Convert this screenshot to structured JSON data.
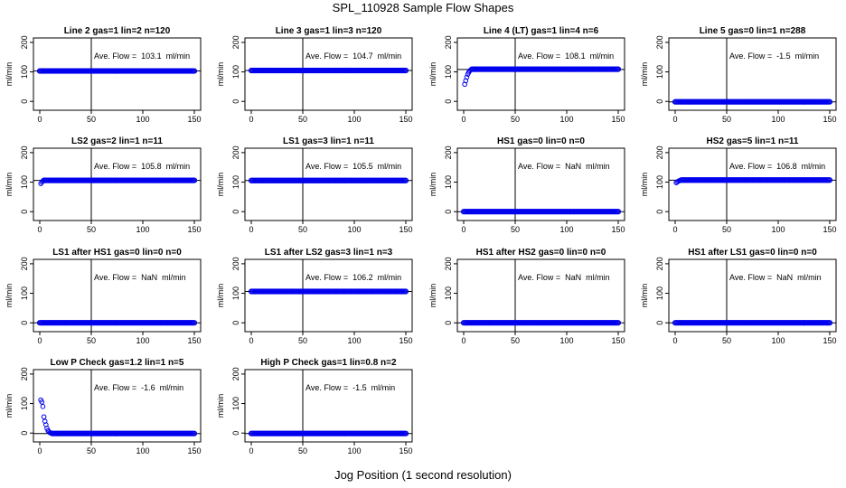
{
  "figure": {
    "title": "SPL_110928  Sample Flow Shapes",
    "xlabel": "Jog Position (1 second resolution)"
  },
  "colors": {
    "points": "#0000ee",
    "axis": "#000000",
    "background": "#ffffff"
  },
  "chart_data": [
    {
      "type": "scatter",
      "title": "Line 2 gas=1 lin=2 n=120",
      "ylabel": "ml/min",
      "xlim": [
        0,
        150
      ],
      "ylim": [
        -30,
        215
      ],
      "xticks": [
        0,
        50,
        100,
        150
      ],
      "yticks": [
        0,
        100,
        200
      ],
      "vline_x": 50,
      "hline_y": 103.1,
      "annotation": "Ave. Flow =  103.1  ml/min",
      "avg_flow": 103.1,
      "series": [
        {
          "name": "flow",
          "x": [
            0,
            150
          ],
          "y": [
            103,
            103
          ],
          "transient_x": [],
          "transient_y": []
        }
      ]
    },
    {
      "type": "scatter",
      "title": "Line 3 gas=1 lin=3 n=120",
      "ylabel": "ml/min",
      "xlim": [
        0,
        150
      ],
      "ylim": [
        -30,
        215
      ],
      "xticks": [
        0,
        50,
        100,
        150
      ],
      "yticks": [
        0,
        100,
        200
      ],
      "vline_x": 50,
      "hline_y": 104.7,
      "annotation": "Ave. Flow =  104.7  ml/min",
      "avg_flow": 104.7,
      "series": [
        {
          "name": "flow",
          "x": [
            0,
            150
          ],
          "y": [
            104.7,
            104.7
          ],
          "transient_x": [],
          "transient_y": []
        }
      ]
    },
    {
      "type": "scatter",
      "title": "Line 4 (LT) gas=1 lin=4 n=6",
      "ylabel": "ml/min",
      "xlim": [
        0,
        150
      ],
      "ylim": [
        -30,
        215
      ],
      "xticks": [
        0,
        50,
        100,
        150
      ],
      "yticks": [
        0,
        100,
        200
      ],
      "vline_x": 50,
      "hline_y": 108.1,
      "annotation": "Ave. Flow =  108.1  ml/min",
      "avg_flow": 108.1,
      "series": [
        {
          "name": "flow",
          "x": [
            8,
            150
          ],
          "y": [
            109,
            109
          ],
          "transient_x": [
            1,
            2,
            3,
            4,
            5,
            6,
            7
          ],
          "transient_y": [
            58,
            70,
            82,
            92,
            99,
            104,
            107
          ]
        }
      ]
    },
    {
      "type": "scatter",
      "title": "Line 5 gas=0 lin=1 n=288",
      "ylabel": "ml/min",
      "xlim": [
        0,
        150
      ],
      "ylim": [
        -30,
        215
      ],
      "xticks": [
        0,
        50,
        100,
        150
      ],
      "yticks": [
        0,
        100,
        200
      ],
      "vline_x": 50,
      "hline_y": -1.5,
      "annotation": "Ave. Flow =  -1.5  ml/min",
      "avg_flow": -1.5,
      "series": [
        {
          "name": "flow",
          "x": [
            0,
            150
          ],
          "y": [
            -1.5,
            -1.5
          ],
          "transient_x": [],
          "transient_y": []
        }
      ]
    },
    {
      "type": "scatter",
      "title": "LS2 gas=2 lin=1 n=11",
      "ylabel": "ml/min",
      "xlim": [
        0,
        150
      ],
      "ylim": [
        -30,
        215
      ],
      "xticks": [
        0,
        50,
        100,
        150
      ],
      "yticks": [
        0,
        100,
        200
      ],
      "vline_x": 50,
      "hline_y": 105.8,
      "annotation": "Ave. Flow =  105.8  ml/min",
      "avg_flow": 105.8,
      "series": [
        {
          "name": "flow",
          "x": [
            4,
            150
          ],
          "y": [
            106,
            106
          ],
          "transient_x": [
            1,
            2,
            3
          ],
          "transient_y": [
            95,
            100,
            104
          ]
        }
      ]
    },
    {
      "type": "scatter",
      "title": "LS1 gas=3 lin=1 n=11",
      "ylabel": "ml/min",
      "xlim": [
        0,
        150
      ],
      "ylim": [
        -30,
        215
      ],
      "xticks": [
        0,
        50,
        100,
        150
      ],
      "yticks": [
        0,
        100,
        200
      ],
      "vline_x": 50,
      "hline_y": 105.5,
      "annotation": "Ave. Flow =  105.5  ml/min",
      "avg_flow": 105.5,
      "series": [
        {
          "name": "flow",
          "x": [
            0,
            150
          ],
          "y": [
            105.5,
            105.5
          ],
          "transient_x": [],
          "transient_y": []
        }
      ]
    },
    {
      "type": "scatter",
      "title": "HS1 gas=0 lin=0 n=0",
      "ylabel": "ml/min",
      "xlim": [
        0,
        150
      ],
      "ylim": [
        -30,
        215
      ],
      "xticks": [
        0,
        50,
        100,
        150
      ],
      "yticks": [
        0,
        100,
        200
      ],
      "vline_x": 50,
      "hline_y": 0,
      "annotation": "Ave. Flow =  NaN  ml/min",
      "avg_flow": null,
      "series": [
        {
          "name": "flow",
          "x": [
            0,
            150
          ],
          "y": [
            0,
            0
          ],
          "transient_x": [],
          "transient_y": []
        }
      ]
    },
    {
      "type": "scatter",
      "title": "HS2 gas=5 lin=1 n=11",
      "ylabel": "ml/min",
      "xlim": [
        0,
        150
      ],
      "ylim": [
        -30,
        215
      ],
      "xticks": [
        0,
        50,
        100,
        150
      ],
      "yticks": [
        0,
        100,
        200
      ],
      "vline_x": 50,
      "hline_y": 106.8,
      "annotation": "Ave. Flow =  106.8  ml/min",
      "avg_flow": 106.8,
      "series": [
        {
          "name": "flow",
          "x": [
            6,
            150
          ],
          "y": [
            107,
            107
          ],
          "transient_x": [
            1,
            2,
            3,
            4,
            5
          ],
          "transient_y": [
            98,
            101,
            103,
            105,
            106
          ]
        }
      ]
    },
    {
      "type": "scatter",
      "title": "LS1 after HS1 gas=0 lin=0 n=0",
      "ylabel": "ml/min",
      "xlim": [
        0,
        150
      ],
      "ylim": [
        -30,
        215
      ],
      "xticks": [
        0,
        50,
        100,
        150
      ],
      "yticks": [
        0,
        100,
        200
      ],
      "vline_x": 50,
      "hline_y": 0,
      "annotation": "Ave. Flow =  NaN  ml/min",
      "avg_flow": null,
      "series": [
        {
          "name": "flow",
          "x": [
            0,
            150
          ],
          "y": [
            0,
            0
          ],
          "transient_x": [],
          "transient_y": []
        }
      ]
    },
    {
      "type": "scatter",
      "title": "LS1 after LS2 gas=3 lin=1 n=3",
      "ylabel": "ml/min",
      "xlim": [
        0,
        150
      ],
      "ylim": [
        -30,
        215
      ],
      "xticks": [
        0,
        50,
        100,
        150
      ],
      "yticks": [
        0,
        100,
        200
      ],
      "vline_x": 50,
      "hline_y": 106.2,
      "annotation": "Ave. Flow =  106.2  ml/min",
      "avg_flow": 106.2,
      "series": [
        {
          "name": "flow",
          "x": [
            0,
            150
          ],
          "y": [
            106.2,
            106.2
          ],
          "transient_x": [],
          "transient_y": []
        }
      ]
    },
    {
      "type": "scatter",
      "title": "HS1 after HS2 gas=0 lin=0 n=0",
      "ylabel": "ml/min",
      "xlim": [
        0,
        150
      ],
      "ylim": [
        -30,
        215
      ],
      "xticks": [
        0,
        50,
        100,
        150
      ],
      "yticks": [
        0,
        100,
        200
      ],
      "vline_x": 50,
      "hline_y": 0,
      "annotation": "Ave. Flow =  NaN  ml/min",
      "avg_flow": null,
      "series": [
        {
          "name": "flow",
          "x": [
            0,
            150
          ],
          "y": [
            0,
            0
          ],
          "transient_x": [],
          "transient_y": []
        }
      ]
    },
    {
      "type": "scatter",
      "title": "HS1 after LS1 gas=0 lin=0 n=0",
      "ylabel": "ml/min",
      "xlim": [
        0,
        150
      ],
      "ylim": [
        -30,
        215
      ],
      "xticks": [
        0,
        50,
        100,
        150
      ],
      "yticks": [
        0,
        100,
        200
      ],
      "vline_x": 50,
      "hline_y": 0,
      "annotation": "Ave. Flow =  NaN  ml/min",
      "avg_flow": null,
      "series": [
        {
          "name": "flow",
          "x": [
            0,
            150
          ],
          "y": [
            0,
            0
          ],
          "transient_x": [],
          "transient_y": []
        }
      ]
    },
    {
      "type": "scatter",
      "title": "Low P Check gas=1.2 lin=1 n=5",
      "ylabel": "ml/min",
      "xlim": [
        0,
        150
      ],
      "ylim": [
        -30,
        215
      ],
      "xticks": [
        0,
        50,
        100,
        150
      ],
      "yticks": [
        0,
        100,
        200
      ],
      "vline_x": 50,
      "hline_y": -1.6,
      "annotation": "Ave. Flow =  -1.6  ml/min",
      "avg_flow": -1.6,
      "series": [
        {
          "name": "flow",
          "x": [
            12,
            150
          ],
          "y": [
            -1.5,
            -1.5
          ],
          "transient_x": [
            1,
            2,
            3,
            4,
            5,
            6,
            7,
            8,
            9,
            10,
            11
          ],
          "transient_y": [
            112,
            105,
            90,
            55,
            40,
            28,
            16,
            8,
            4,
            1,
            0
          ]
        }
      ]
    },
    {
      "type": "scatter",
      "title": "High P Check gas=1 lin=0.8 n=2",
      "ylabel": "ml/min",
      "xlim": [
        0,
        150
      ],
      "ylim": [
        -30,
        215
      ],
      "xticks": [
        0,
        50,
        100,
        150
      ],
      "yticks": [
        0,
        100,
        200
      ],
      "vline_x": 50,
      "hline_y": -1.5,
      "annotation": "Ave. Flow =  -1.5  ml/min",
      "avg_flow": -1.5,
      "series": [
        {
          "name": "flow",
          "x": [
            0,
            150
          ],
          "y": [
            -1.5,
            -1.5
          ],
          "transient_x": [],
          "transient_y": []
        }
      ]
    }
  ]
}
